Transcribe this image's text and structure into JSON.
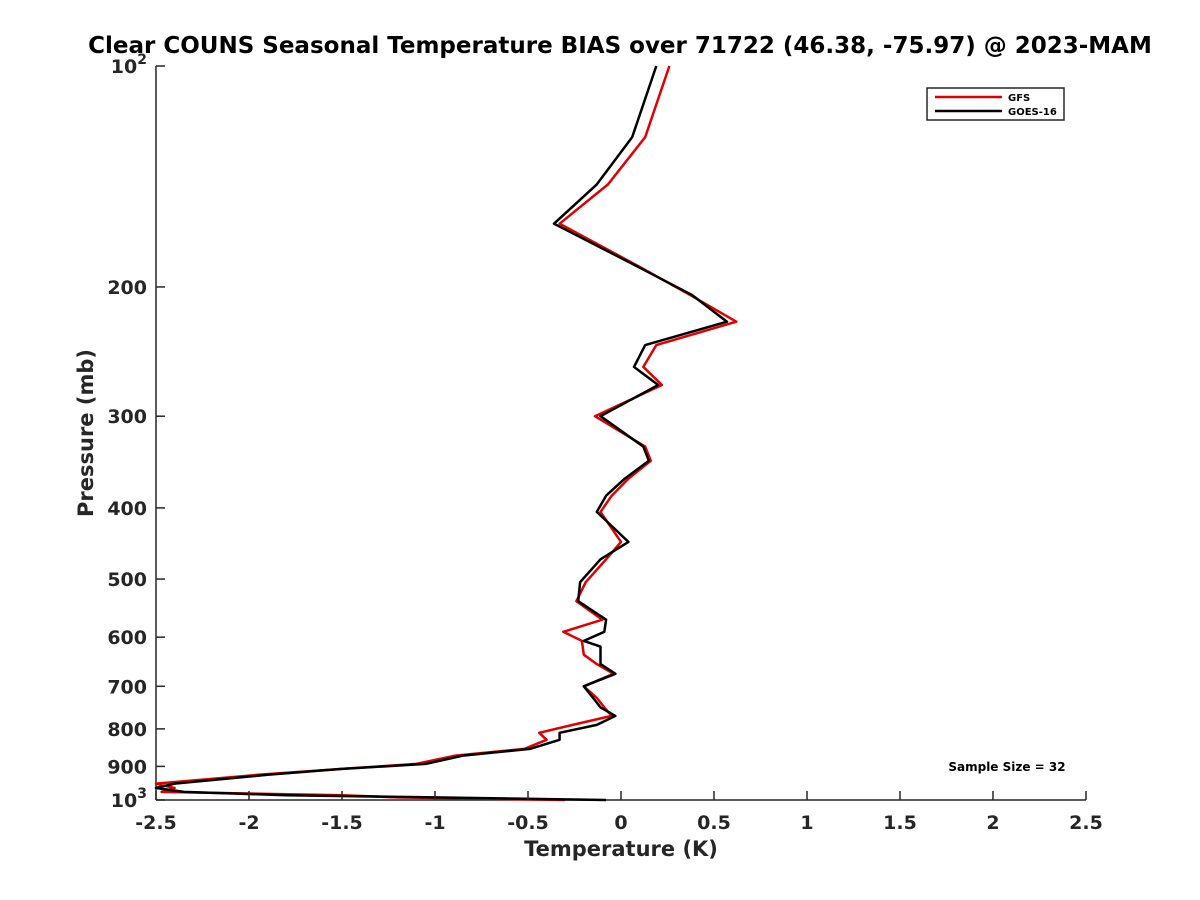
{
  "chart_data": {
    "type": "line",
    "title": "Clear COUNS Seasonal Temperature BIAS over 71722 (46.38, -75.97) @ 2023-MAM",
    "xlabel": "Temperature (K)",
    "ylabel": "Pressure (mb)",
    "xlim": [
      -2.5,
      2.5
    ],
    "ylim": [
      100,
      1000
    ],
    "y_scale": "log",
    "y_reversed": true,
    "grid": false,
    "legend_placement": "top-right",
    "x_ticks": [
      "-2.5",
      "-2",
      "-1.5",
      "-1",
      "-0.5",
      "0",
      "0.5",
      "1",
      "1.5",
      "2",
      "2.5"
    ],
    "x_tick_values": [
      -2.5,
      -2,
      -1.5,
      -1,
      -0.5,
      0,
      0.5,
      1,
      1.5,
      2,
      2.5
    ],
    "y_tick_values": [
      100,
      200,
      300,
      400,
      500,
      600,
      700,
      800,
      900,
      1000
    ],
    "y_ticks": [
      {
        "base": "10",
        "exp": "2"
      },
      {
        "base": "200",
        "exp": ""
      },
      {
        "base": "300",
        "exp": ""
      },
      {
        "base": "400",
        "exp": ""
      },
      {
        "base": "500",
        "exp": ""
      },
      {
        "base": "600",
        "exp": ""
      },
      {
        "base": "700",
        "exp": ""
      },
      {
        "base": "800",
        "exp": ""
      },
      {
        "base": "900",
        "exp": ""
      },
      {
        "base": "10",
        "exp": "3"
      }
    ],
    "annotation": "Sample Size = 32",
    "series": [
      {
        "name": "GFS",
        "color": "#e00000",
        "points": [
          [
            0.26,
            100
          ],
          [
            0.13,
            125
          ],
          [
            -0.07,
            145
          ],
          [
            -0.33,
            164
          ],
          [
            0.07,
            186
          ],
          [
            0.37,
            205
          ],
          [
            0.62,
            223
          ],
          [
            0.19,
            240
          ],
          [
            0.12,
            257
          ],
          [
            0.22,
            272
          ],
          [
            -0.14,
            300
          ],
          [
            0.13,
            330
          ],
          [
            0.16,
            345
          ],
          [
            0.04,
            365
          ],
          [
            -0.05,
            385
          ],
          [
            -0.11,
            405
          ],
          [
            0.0,
            445
          ],
          [
            -0.08,
            470
          ],
          [
            -0.19,
            505
          ],
          [
            -0.24,
            536
          ],
          [
            -0.1,
            568
          ],
          [
            -0.31,
            590
          ],
          [
            -0.21,
            607
          ],
          [
            -0.2,
            634
          ],
          [
            -0.13,
            653
          ],
          [
            -0.04,
            673
          ],
          [
            -0.2,
            700
          ],
          [
            -0.13,
            726
          ],
          [
            -0.09,
            748
          ],
          [
            -0.05,
            768
          ],
          [
            -0.26,
            790
          ],
          [
            -0.44,
            810
          ],
          [
            -0.4,
            828
          ],
          [
            -0.52,
            852
          ],
          [
            -0.89,
            870
          ],
          [
            -1.1,
            893
          ],
          [
            -1.5,
            907
          ],
          [
            -1.95,
            924
          ],
          [
            -2.5,
            950
          ],
          [
            -2.4,
            963
          ],
          [
            -2.47,
            975
          ],
          [
            -1.5,
            985
          ],
          [
            -1.2,
            992
          ],
          [
            -0.3,
            1000
          ]
        ]
      },
      {
        "name": "GOES-16",
        "color": "#000000",
        "points": [
          [
            0.19,
            100
          ],
          [
            0.06,
            125
          ],
          [
            -0.13,
            145
          ],
          [
            -0.36,
            164
          ],
          [
            0.06,
            186
          ],
          [
            0.38,
            205
          ],
          [
            0.57,
            223
          ],
          [
            0.13,
            240
          ],
          [
            0.07,
            257
          ],
          [
            0.2,
            272
          ],
          [
            -0.11,
            300
          ],
          [
            0.12,
            330
          ],
          [
            0.15,
            345
          ],
          [
            0.02,
            365
          ],
          [
            -0.08,
            385
          ],
          [
            -0.13,
            405
          ],
          [
            0.04,
            445
          ],
          [
            -0.11,
            470
          ],
          [
            -0.22,
            505
          ],
          [
            -0.23,
            536
          ],
          [
            -0.08,
            568
          ],
          [
            -0.09,
            590
          ],
          [
            -0.2,
            607
          ],
          [
            -0.11,
            618
          ],
          [
            -0.11,
            653
          ],
          [
            -0.03,
            673
          ],
          [
            -0.2,
            700
          ],
          [
            -0.15,
            726
          ],
          [
            -0.11,
            748
          ],
          [
            -0.03,
            768
          ],
          [
            -0.13,
            790
          ],
          [
            -0.33,
            810
          ],
          [
            -0.33,
            828
          ],
          [
            -0.49,
            852
          ],
          [
            -0.85,
            870
          ],
          [
            -1.05,
            893
          ],
          [
            -1.5,
            907
          ],
          [
            -1.9,
            924
          ],
          [
            -2.4,
            950
          ],
          [
            -2.5,
            963
          ],
          [
            -2.35,
            975
          ],
          [
            -1.8,
            985
          ],
          [
            -1.0,
            992
          ],
          [
            -0.08,
            1000
          ]
        ]
      }
    ]
  }
}
